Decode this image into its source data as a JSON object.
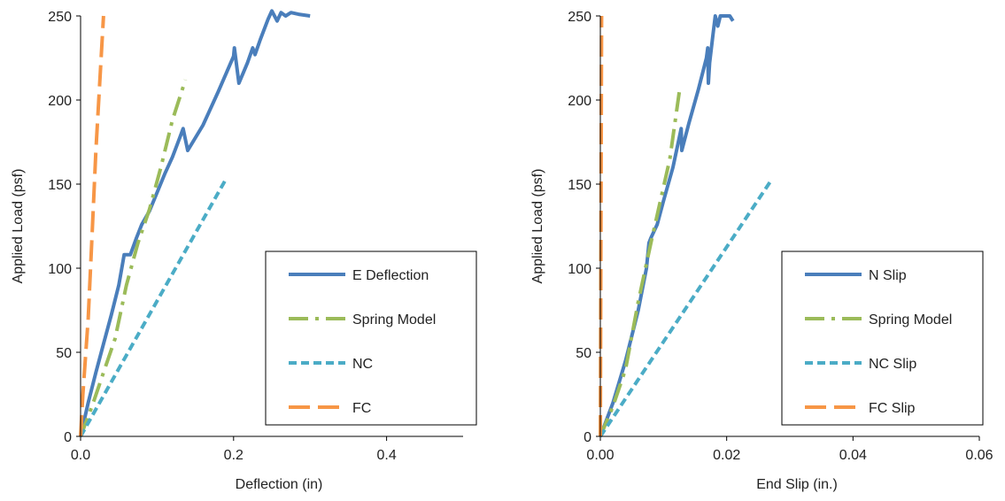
{
  "chart_data": [
    {
      "type": "line",
      "xlabel": "Deflection (in)",
      "ylabel": "Applied Load (psf)",
      "xlim": [
        0,
        0.5
      ],
      "ylim": [
        0,
        250
      ],
      "xticks": [
        0,
        0.2,
        0.4
      ],
      "xtick_labels": [
        "0.0",
        "0.2",
        "0.4"
      ],
      "yticks": [
        0,
        50,
        100,
        150,
        200,
        250
      ],
      "ytick_labels": [
        "0",
        "50",
        "100",
        "150",
        "200",
        "250"
      ],
      "grid": false,
      "legend_position": "bottom-right",
      "series": [
        {
          "name": "E Deflection",
          "color": "#4a7ebb",
          "dash": "solid",
          "points": [
            [
              0,
              0
            ],
            [
              0.01,
              20
            ],
            [
              0.02,
              38
            ],
            [
              0.03,
              55
            ],
            [
              0.04,
              72
            ],
            [
              0.05,
              90
            ],
            [
              0.057,
              108
            ],
            [
              0.065,
              108
            ],
            [
              0.073,
              118
            ],
            [
              0.08,
              126
            ],
            [
              0.09,
              134
            ],
            [
              0.1,
              145
            ],
            [
              0.11,
              156
            ],
            [
              0.12,
              166
            ],
            [
              0.13,
              178
            ],
            [
              0.134,
              183
            ],
            [
              0.14,
              170
            ],
            [
              0.16,
              185
            ],
            [
              0.18,
              205
            ],
            [
              0.2,
              226
            ],
            [
              0.201,
              231
            ],
            [
              0.207,
              210
            ],
            [
              0.218,
              222
            ],
            [
              0.225,
              231
            ],
            [
              0.228,
              227
            ],
            [
              0.235,
              236
            ],
            [
              0.245,
              248
            ],
            [
              0.25,
              253
            ],
            [
              0.257,
              247
            ],
            [
              0.262,
              252
            ],
            [
              0.268,
              250
            ],
            [
              0.275,
              252
            ],
            [
              0.285,
              251
            ],
            [
              0.3,
              250
            ]
          ]
        },
        {
          "name": "Spring Model",
          "color": "#9bbb59",
          "dash": "dashdot",
          "points": [
            [
              0,
              0
            ],
            [
              0.015,
              18
            ],
            [
              0.03,
              38
            ],
            [
              0.045,
              58
            ],
            [
              0.06,
              90
            ],
            [
              0.075,
              115
            ],
            [
              0.09,
              135
            ],
            [
              0.105,
              160
            ],
            [
              0.12,
              188
            ],
            [
              0.137,
              212
            ]
          ]
        },
        {
          "name": "NC",
          "color": "#4bacc6",
          "dash": "shortdash",
          "points": [
            [
              0,
              0
            ],
            [
              0.19,
              153
            ]
          ]
        },
        {
          "name": "FC",
          "color": "#f79646",
          "dash": "longdash",
          "points": [
            [
              0,
              0
            ],
            [
              0.003,
              25
            ],
            [
              0.01,
              70
            ],
            [
              0.015,
              120
            ],
            [
              0.02,
              170
            ],
            [
              0.025,
              210
            ],
            [
              0.03,
              250
            ]
          ]
        }
      ]
    },
    {
      "type": "line",
      "xlabel": "End Slip (in.)",
      "ylabel": "Applied Load (psf)",
      "xlim": [
        0,
        0.06
      ],
      "ylim": [
        0,
        250
      ],
      "xticks": [
        0,
        0.02,
        0.04,
        0.06
      ],
      "xtick_labels": [
        "0.00",
        "0.02",
        "0.04",
        "0.06"
      ],
      "yticks": [
        0,
        50,
        100,
        150,
        200,
        250
      ],
      "ytick_labels": [
        "0",
        "50",
        "100",
        "150",
        "200",
        "250"
      ],
      "grid": false,
      "legend_position": "bottom-right",
      "series": [
        {
          "name": "N Slip",
          "color": "#4a7ebb",
          "dash": "solid",
          "points": [
            [
              0,
              0
            ],
            [
              0.002,
              20
            ],
            [
              0.004,
              45
            ],
            [
              0.006,
              75
            ],
            [
              0.0073,
              100
            ],
            [
              0.0077,
              115
            ],
            [
              0.008,
              118
            ],
            [
              0.009,
              126
            ],
            [
              0.01,
              140
            ],
            [
              0.0115,
              160
            ],
            [
              0.0128,
              183
            ],
            [
              0.0129,
              170
            ],
            [
              0.014,
              186
            ],
            [
              0.0155,
              206
            ],
            [
              0.0168,
              225
            ],
            [
              0.017,
              231
            ],
            [
              0.0171,
              210
            ],
            [
              0.0173,
              222
            ],
            [
              0.0178,
              238
            ],
            [
              0.0182,
              250
            ],
            [
              0.0186,
              244
            ],
            [
              0.019,
              250
            ],
            [
              0.0205,
              250
            ],
            [
              0.021,
              247
            ]
          ]
        },
        {
          "name": "Spring Model",
          "color": "#9bbb59",
          "dash": "dashdot",
          "points": [
            [
              0,
              0
            ],
            [
              0.002,
              18
            ],
            [
              0.004,
              40
            ],
            [
              0.006,
              80
            ],
            [
              0.008,
              115
            ],
            [
              0.0095,
              140
            ],
            [
              0.011,
              165
            ],
            [
              0.0125,
              205
            ]
          ]
        },
        {
          "name": "NC Slip",
          "color": "#4bacc6",
          "dash": "shortdash",
          "points": [
            [
              0,
              0
            ],
            [
              0.027,
              152
            ]
          ]
        },
        {
          "name": "FC Slip",
          "color": "#f79646",
          "dash": "longdash",
          "points": [
            [
              0,
              0
            ],
            [
              0.0002,
              250
            ]
          ]
        }
      ]
    }
  ]
}
